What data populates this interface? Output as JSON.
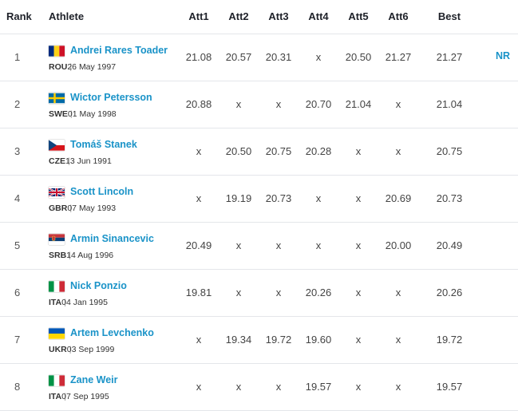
{
  "headers": {
    "rank": "Rank",
    "athlete": "Athlete",
    "att1": "Att1",
    "att2": "Att2",
    "att3": "Att3",
    "att4": "Att4",
    "att5": "Att5",
    "att6": "Att6",
    "best": "Best"
  },
  "rows": [
    {
      "rank": "1",
      "name": "Andrei Rares Toader",
      "country": "ROU",
      "dob": "26 May 1997",
      "att": [
        "21.08",
        "20.57",
        "20.31",
        "x",
        "20.50",
        "21.27"
      ],
      "best": "21.27",
      "record": "NR"
    },
    {
      "rank": "2",
      "name": "Wictor Petersson",
      "country": "SWE",
      "dob": "01 May 1998",
      "att": [
        "20.88",
        "x",
        "x",
        "20.70",
        "21.04",
        "x"
      ],
      "best": "21.04",
      "record": ""
    },
    {
      "rank": "3",
      "name": "Tomáš Stanek",
      "country": "CZE",
      "dob": "13 Jun 1991",
      "att": [
        "x",
        "20.50",
        "20.75",
        "20.28",
        "x",
        "x"
      ],
      "best": "20.75",
      "record": ""
    },
    {
      "rank": "4",
      "name": "Scott Lincoln",
      "country": "GBR",
      "dob": "07 May 1993",
      "att": [
        "x",
        "19.19",
        "20.73",
        "x",
        "x",
        "20.69"
      ],
      "best": "20.73",
      "record": ""
    },
    {
      "rank": "5",
      "name": "Armin Sinancevic",
      "country": "SRB",
      "dob": "14 Aug 1996",
      "att": [
        "20.49",
        "x",
        "x",
        "x",
        "x",
        "20.00"
      ],
      "best": "20.49",
      "record": ""
    },
    {
      "rank": "6",
      "name": "Nick Ponzio",
      "country": "ITA",
      "dob": "04 Jan 1995",
      "att": [
        "19.81",
        "x",
        "x",
        "20.26",
        "x",
        "x"
      ],
      "best": "20.26",
      "record": ""
    },
    {
      "rank": "7",
      "name": "Artem Levchenko",
      "country": "UKR",
      "dob": "03 Sep 1999",
      "att": [
        "x",
        "19.34",
        "19.72",
        "19.60",
        "x",
        "x"
      ],
      "best": "19.72",
      "record": ""
    },
    {
      "rank": "8",
      "name": "Zane Weir",
      "country": "ITA",
      "dob": "07 Sep 1995",
      "att": [
        "x",
        "x",
        "x",
        "19.57",
        "x",
        "x"
      ],
      "best": "19.57",
      "record": ""
    }
  ],
  "colors": {
    "link": "#1a93c8",
    "border": "#e4e6ea"
  }
}
